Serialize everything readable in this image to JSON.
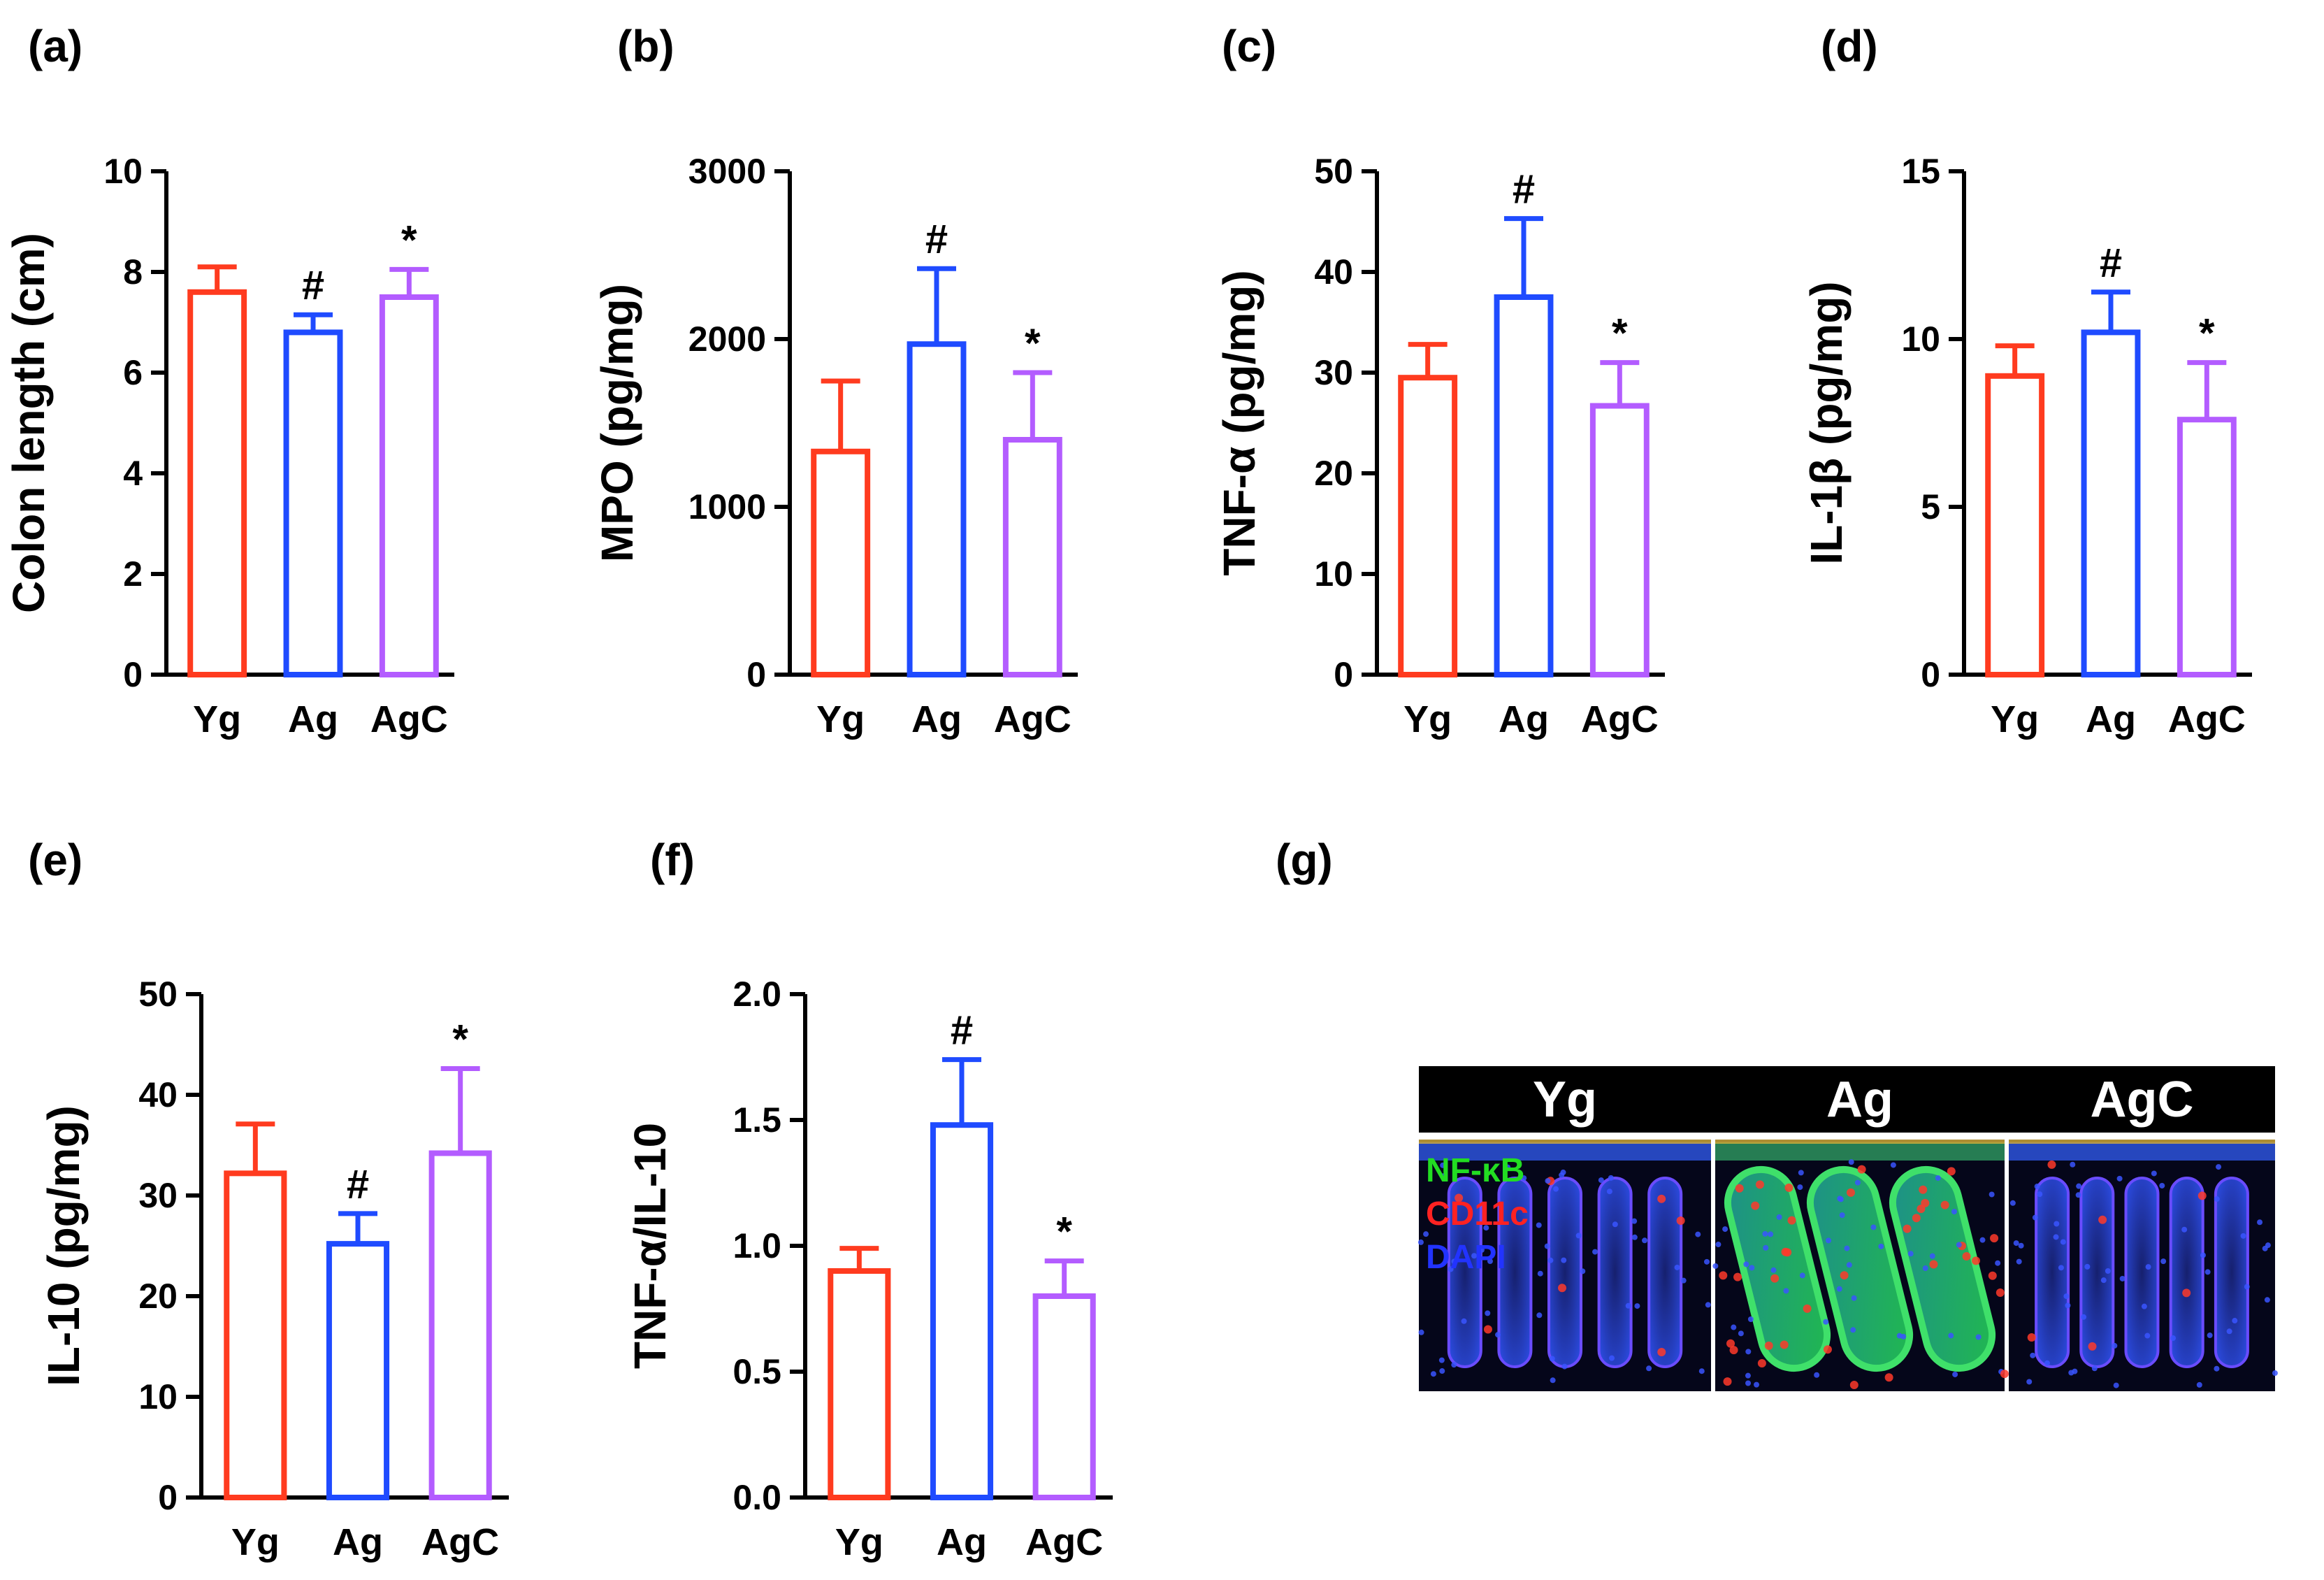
{
  "chart_data": [
    {
      "panel": "(a)",
      "type": "bar",
      "ylabel": "Colon length (cm)",
      "categories": [
        "Yg",
        "Ag",
        "AgC"
      ],
      "values": [
        7.6,
        6.8,
        7.5
      ],
      "errors": [
        0.5,
        0.35,
        0.55
      ],
      "significance": [
        "",
        "#",
        "*"
      ],
      "ylim": [
        0,
        10
      ],
      "yticks": [
        "0",
        "2",
        "4",
        "6",
        "8",
        "10"
      ],
      "colors": [
        "#ff3b1f",
        "#1f4bff",
        "#b35cff"
      ]
    },
    {
      "panel": "(b)",
      "type": "bar",
      "ylabel": "MPO (pg/mg)",
      "categories": [
        "Yg",
        "Ag",
        "AgC"
      ],
      "values": [
        1330,
        1970,
        1400
      ],
      "errors": [
        420,
        450,
        400
      ],
      "significance": [
        "",
        "#",
        "*"
      ],
      "ylim": [
        0,
        3000
      ],
      "yticks": [
        "0",
        "1000",
        "2000",
        "3000"
      ],
      "colors": [
        "#ff3b1f",
        "#1f4bff",
        "#b35cff"
      ]
    },
    {
      "panel": "(c)",
      "type": "bar",
      "ylabel": "TNF-α (pg/mg)",
      "categories": [
        "Yg",
        "Ag",
        "AgC"
      ],
      "values": [
        29.5,
        37.5,
        26.7
      ],
      "errors": [
        3.3,
        7.8,
        4.3
      ],
      "significance": [
        "",
        "#",
        "*"
      ],
      "ylim": [
        0,
        50
      ],
      "yticks": [
        "0",
        "10",
        "20",
        "30",
        "40",
        "50"
      ],
      "colors": [
        "#ff3b1f",
        "#1f4bff",
        "#b35cff"
      ]
    },
    {
      "panel": "(d)",
      "type": "bar",
      "ylabel": "IL-1β (pg/mg)",
      "categories": [
        "Yg",
        "Ag",
        "AgC"
      ],
      "values": [
        8.9,
        10.2,
        7.6
      ],
      "errors": [
        0.9,
        1.2,
        1.7
      ],
      "significance": [
        "",
        "#",
        "*"
      ],
      "ylim": [
        0,
        15
      ],
      "yticks": [
        "0",
        "5",
        "10",
        "15"
      ],
      "colors": [
        "#ff3b1f",
        "#1f4bff",
        "#b35cff"
      ]
    },
    {
      "panel": "(e)",
      "type": "bar",
      "ylabel": "IL-10 (pg/mg)",
      "categories": [
        "Yg",
        "Ag",
        "AgC"
      ],
      "values": [
        32.2,
        25.2,
        34.2
      ],
      "errors": [
        4.9,
        3.0,
        8.4
      ],
      "significance": [
        "",
        "#",
        "*"
      ],
      "ylim": [
        0,
        50
      ],
      "yticks": [
        "0",
        "10",
        "20",
        "30",
        "40",
        "50"
      ],
      "colors": [
        "#ff3b1f",
        "#1f4bff",
        "#b35cff"
      ]
    },
    {
      "panel": "(f)",
      "type": "bar",
      "ylabel": "TNF-α/IL-10",
      "categories": [
        "Yg",
        "Ag",
        "AgC"
      ],
      "values": [
        0.9,
        1.48,
        0.8
      ],
      "errors": [
        0.09,
        0.26,
        0.14
      ],
      "significance": [
        "",
        "#",
        "*"
      ],
      "ylim": [
        0,
        2.0
      ],
      "yticks": [
        "0.0",
        "0.5",
        "1.0",
        "1.5",
        "2.0"
      ],
      "colors": [
        "#ff3b1f",
        "#1f4bff",
        "#b35cff"
      ]
    }
  ],
  "micrograph": {
    "panel": "(g)",
    "columns": [
      "Yg",
      "Ag",
      "AgC"
    ],
    "legend": [
      {
        "text": "NF-κB",
        "color": "#22dd22"
      },
      {
        "text": "CD11c",
        "color": "#ff2222"
      },
      {
        "text": "DAPI",
        "color": "#2233ff"
      }
    ]
  }
}
